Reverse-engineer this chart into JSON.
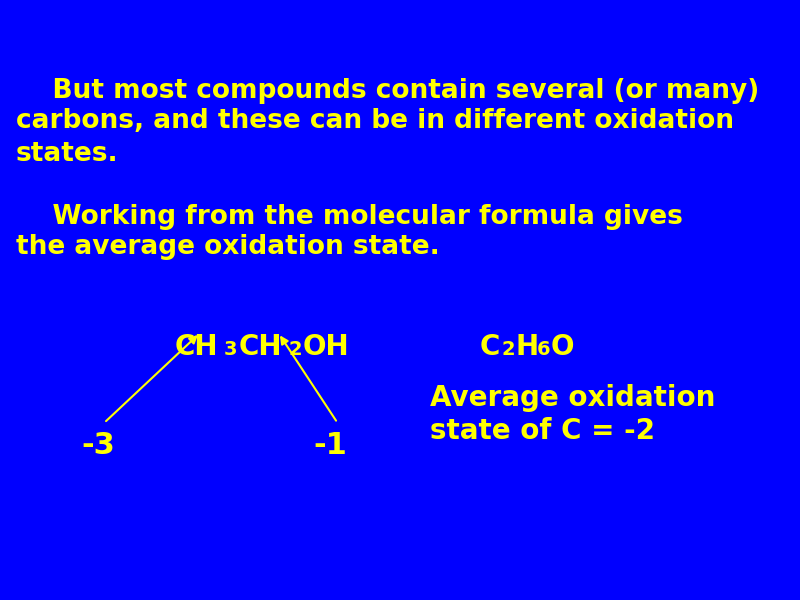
{
  "bg_color": "#0000FF",
  "text_color": "#FFFF00",
  "fig_width": 8.0,
  "fig_height": 6.0,
  "para1_line1": "    But most compounds contain several (or many)",
  "para1_line2": "carbons, and these can be in different oxidation",
  "para1_line3": "states.",
  "para2_line1": "    Working from the molecular formula gives",
  "para2_line2": "the average oxidation state.",
  "label_minus3": "-3",
  "label_minus1": "-1",
  "avg_ox_line1": "Average oxidation",
  "avg_ox_line2": "state of C = -2",
  "font_size_main": 19,
  "font_size_formula": 20,
  "font_size_sub": 14,
  "font_size_labels": 22,
  "font_size_avg": 20
}
